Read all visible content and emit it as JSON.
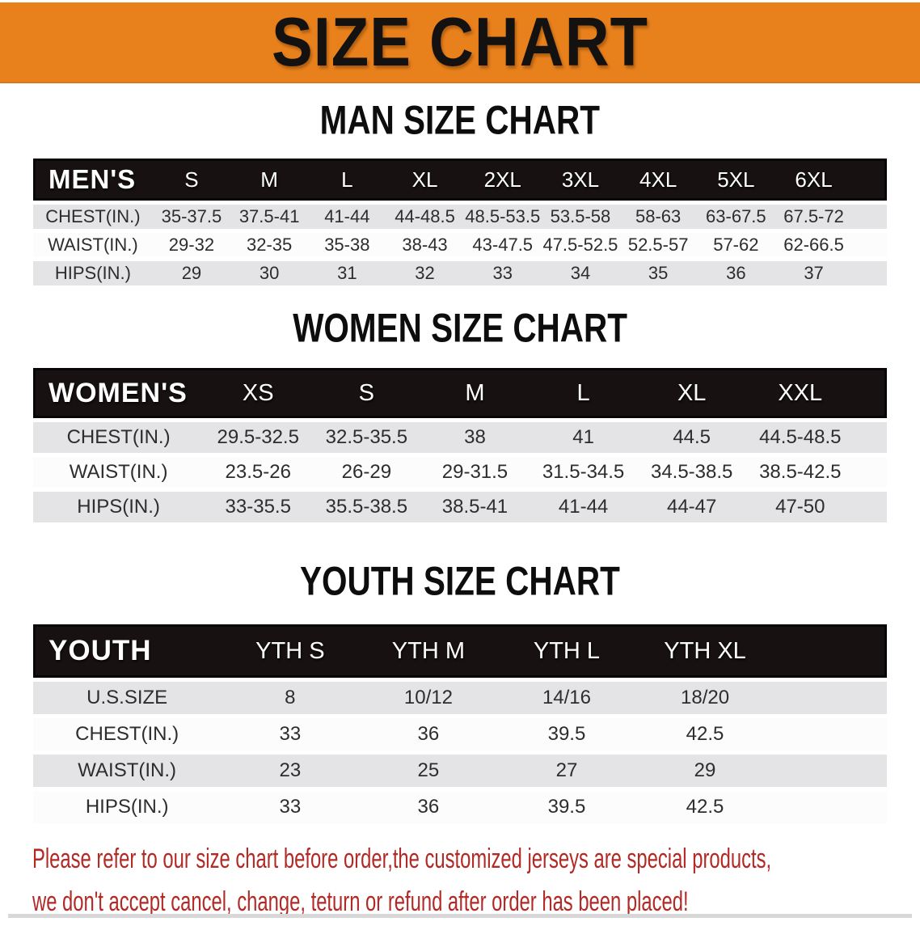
{
  "banner": {
    "title": "SIZE CHART",
    "bg_color": "#e8811c",
    "text_color": "#141210"
  },
  "sections": [
    {
      "title": "MAN SIZE CHART",
      "header_label": "MEN'S",
      "columns": [
        "S",
        "M",
        "L",
        "XL",
        "2XL",
        "3XL",
        "4XL",
        "5XL",
        "6XL"
      ],
      "rows": [
        {
          "label": "CHEST(IN.)",
          "values": [
            "35-37.5",
            "37.5-41",
            "41-44",
            "44-48.5",
            "48.5-53.5",
            "53.5-58",
            "58-63",
            "63-67.5",
            "67.5-72"
          ]
        },
        {
          "label": "WAIST(IN.)",
          "values": [
            "29-32",
            "32-35",
            "35-38",
            "38-43",
            "43-47.5",
            "47.5-52.5",
            "52.5-57",
            "57-62",
            "62-66.5"
          ]
        },
        {
          "label": "HIPS(IN.)",
          "values": [
            "29",
            "30",
            "31",
            "32",
            "33",
            "34",
            "35",
            "36",
            "37"
          ]
        }
      ]
    },
    {
      "title": "WOMEN SIZE CHART",
      "header_label": "WOMEN'S",
      "columns": [
        "XS",
        "S",
        "M",
        "L",
        "XL",
        "XXL"
      ],
      "rows": [
        {
          "label": "CHEST(IN.)",
          "values": [
            "29.5-32.5",
            "32.5-35.5",
            "38",
            "41",
            "44.5",
            "44.5-48.5"
          ]
        },
        {
          "label": "WAIST(IN.)",
          "values": [
            "23.5-26",
            "26-29",
            "29-31.5",
            "31.5-34.5",
            "34.5-38.5",
            "38.5-42.5"
          ]
        },
        {
          "label": "HIPS(IN.)",
          "values": [
            "33-35.5",
            "35.5-38.5",
            "38.5-41",
            "41-44",
            "44-47",
            "47-50"
          ]
        }
      ]
    },
    {
      "title": "YOUTH SIZE CHART",
      "header_label": "YOUTH",
      "columns": [
        "YTH S",
        "YTH M",
        "YTH L",
        "YTH XL"
      ],
      "rows": [
        {
          "label": "U.S.SIZE",
          "values": [
            "8",
            "10/12",
            "14/16",
            "18/20"
          ]
        },
        {
          "label": "CHEST(IN.)",
          "values": [
            "33",
            "36",
            "39.5",
            "42.5"
          ]
        },
        {
          "label": "WAIST(IN.)",
          "values": [
            "23",
            "25",
            "27",
            "29"
          ]
        },
        {
          "label": "HIPS(IN.)",
          "values": [
            "33",
            "36",
            "39.5",
            "42.5"
          ]
        }
      ]
    }
  ],
  "footer": {
    "line1": "Please refer to our size chart before order,the customized jerseys are special products,",
    "line2": "we don't accept cancel, change, teturn or refund after order has been placed!",
    "text_color": "#b22a25"
  }
}
